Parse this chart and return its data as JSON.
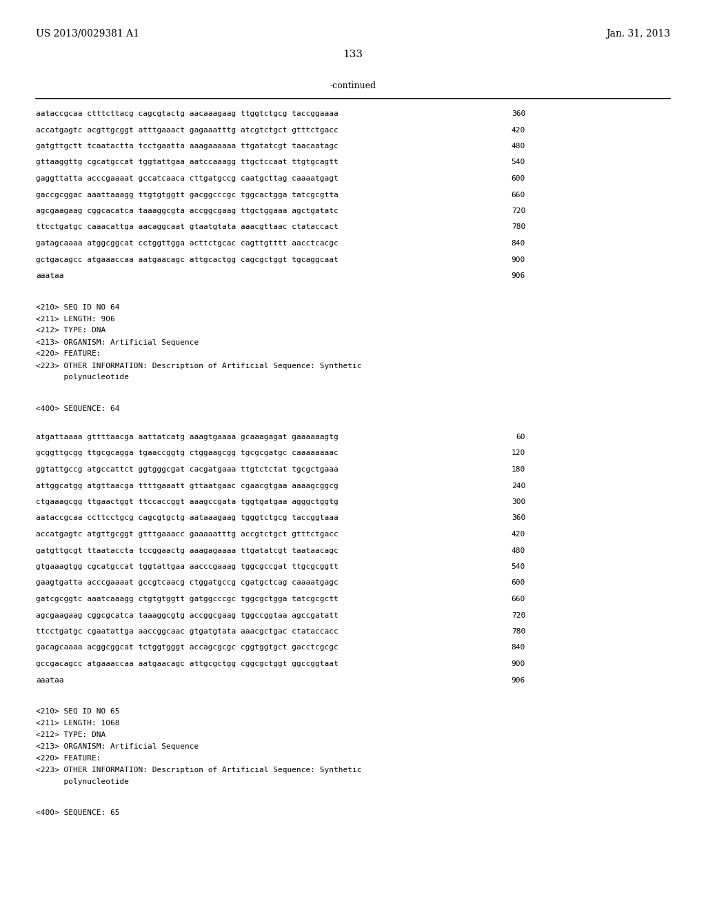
{
  "header_left": "US 2013/0029381 A1",
  "header_right": "Jan. 31, 2013",
  "page_number": "133",
  "continued_label": "-continued",
  "background_color": "#ffffff",
  "text_color": "#000000",
  "sections": [
    {
      "type": "sequence_lines",
      "lines": [
        [
          "aataccgcaa ctttcttacg cagcgtactg aacaaagaag ttggtctgcg taccggaaaa",
          "360"
        ],
        [
          "accatgagtc acgttgcggt atttgaaact gagaaatttg atcgtctgct gtttctgacc",
          "420"
        ],
        [
          "gatgttgctt tcaatactta tcctgaatta aaagaaaaaa ttgatatcgt taacaatagc",
          "480"
        ],
        [
          "gttaaggttg cgcatgccat tggtattgaa aatccaaagg ttgctccaat ttgtgcagtt",
          "540"
        ],
        [
          "gaggttatta acccgaaaat gccatcaaca cttgatgccg caatgcttag caaaatgagt",
          "600"
        ],
        [
          "gaccgcggac aaattaaagg ttgtgtggtt gacggcccgc tggcactgga tatcgcgtta",
          "660"
        ],
        [
          "agcgaagaag cggcacatca taaaggcgta accggcgaag ttgctggaaa agctgatatc",
          "720"
        ],
        [
          "ttcctgatgc caaacattga aacaggcaat gtaatgtata aaacgttaac ctataccact",
          "780"
        ],
        [
          "gatagcaaaa atggcggcat cctggttgga acttctgcac cagttgtttt aacctcacgc",
          "840"
        ],
        [
          "gctgacagcc atgaaaccaa aatgaacagc attgcactgg cagcgctggt tgcaggcaat",
          "900"
        ],
        [
          "aaataa",
          "906"
        ]
      ]
    },
    {
      "type": "metadata",
      "lines": [
        "<210> SEQ ID NO 64",
        "<211> LENGTH: 906",
        "<212> TYPE: DNA",
        "<213> ORGANISM: Artificial Sequence",
        "<220> FEATURE:",
        "<223> OTHER INFORMATION: Description of Artificial Sequence: Synthetic",
        "      polynucleotide"
      ]
    },
    {
      "type": "sequence_label",
      "line": "<400> SEQUENCE: 64"
    },
    {
      "type": "sequence_lines",
      "lines": [
        [
          "atgattaaaa gttttaacga aattatcatg aaagtgaaaa gcaaagagat gaaaaaagtg",
          "60"
        ],
        [
          "gcggttgcgg ttgcgcagga tgaaccggtg ctggaagcgg tgcgcgatgc caaaaaaaac",
          "120"
        ],
        [
          "ggtattgccg atgccattct ggtgggcgat cacgatgaaa ttgtctctat tgcgctgaaa",
          "180"
        ],
        [
          "attggcatgg atgttaacga ttttgaaatt gttaatgaac cgaacgtgaa aaaagcggcg",
          "240"
        ],
        [
          "ctgaaagcgg ttgaactggt ttccaccggt aaagccgata tggtgatgaa agggctggtg",
          "300"
        ],
        [
          "aataccgcaa ccttcctgcg cagcgtgctg aataaagaag tgggtctgcg taccggtaaa",
          "360"
        ],
        [
          "accatgagtc atgttgcggt gtttgaaacc gaaaaatttg accgtctgct gtttctgacc",
          "420"
        ],
        [
          "gatgttgcgt ttaataccta tccggaactg aaagagaaaa ttgatatcgt taataacagc",
          "480"
        ],
        [
          "gtgaaagtgg cgcatgccat tggtattgaa aacccgaaag tggcgccgat ttgcgcggtt",
          "540"
        ],
        [
          "gaagtgatta acccgaaaat gccgtcaacg ctggatgccg cgatgctcag caaaatgagc",
          "600"
        ],
        [
          "gatcgcggtc aaatcaaagg ctgtgtggtt gatggcccgc tggcgctgga tatcgcgctt",
          "660"
        ],
        [
          "agcgaagaag cggcgcatca taaaggcgtg accggcgaag tggccggtaa agccgatatt",
          "720"
        ],
        [
          "ttcctgatgc cgaatattga aaccggcaac gtgatgtata aaacgctgac ctataccacc",
          "780"
        ],
        [
          "gacagcaaaa acggcggcat tctggtgggt accagcgcgc cggtggtgct gacctcgcgc",
          "840"
        ],
        [
          "gccgacagcc atgaaaccaa aatgaacagc attgcgctgg cggcgctggt ggccggtaat",
          "900"
        ],
        [
          "aaataa",
          "906"
        ]
      ]
    },
    {
      "type": "metadata",
      "lines": [
        "<210> SEQ ID NO 65",
        "<211> LENGTH: 1068",
        "<212> TYPE: DNA",
        "<213> ORGANISM: Artificial Sequence",
        "<220> FEATURE:",
        "<223> OTHER INFORMATION: Description of Artificial Sequence: Synthetic",
        "      polynucleotide"
      ]
    },
    {
      "type": "sequence_label",
      "line": "<400> SEQUENCE: 65"
    }
  ]
}
